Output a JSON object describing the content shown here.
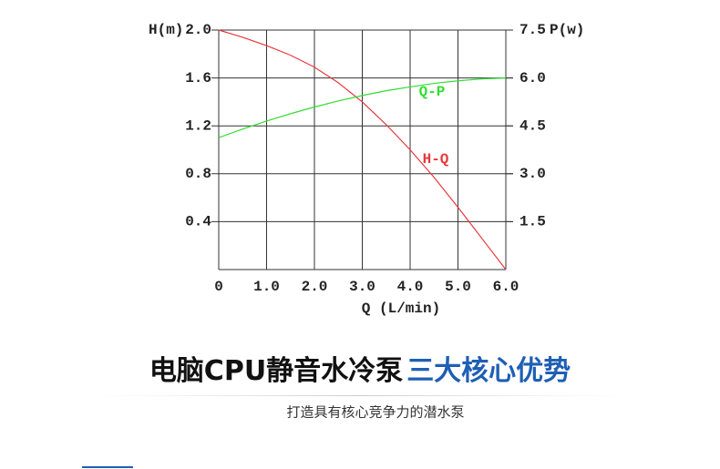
{
  "chart_data": {
    "type": "line",
    "y_label": "H(m)",
    "y2_label": "P(w)",
    "x_label": "Q (L/min)",
    "x": [
      0,
      0.5,
      1,
      1.5,
      2,
      2.5,
      3,
      3.5,
      4,
      4.5,
      5,
      5.5,
      6
    ],
    "series": [
      {
        "name": "H-Q",
        "color": "#e8383d",
        "values": [
          2.0,
          1.94,
          1.87,
          1.79,
          1.69,
          1.56,
          1.4,
          1.21,
          1.0,
          0.77,
          0.52,
          0.26,
          0
        ]
      },
      {
        "name": "Q-P",
        "color": "#33dd33",
        "axis": "y2",
        "values": [
          4.13,
          4.4,
          4.65,
          4.88,
          5.09,
          5.28,
          5.45,
          5.6,
          5.72,
          5.83,
          5.91,
          5.97,
          6.0
        ]
      }
    ],
    "xlim": [
      0,
      6
    ],
    "xticks": [
      0,
      {
        "value": 1,
        "label": "1.0"
      },
      {
        "value": 2,
        "label": "2.0"
      },
      {
        "value": 3,
        "label": "3.0"
      },
      {
        "value": 4,
        "label": "4.0"
      },
      {
        "value": 5,
        "label": "5.0"
      },
      {
        "value": 6,
        "label": "6.0"
      }
    ],
    "ylim": [
      0,
      2
    ],
    "yticks": [
      0.4,
      0.8,
      1.2,
      1.6,
      {
        "value": 2,
        "label": "2.0"
      }
    ],
    "y2lim": [
      0,
      7.5
    ],
    "y2ticks": [
      1.5,
      {
        "value": 3,
        "label": "3.0"
      },
      4.5,
      {
        "value": 6,
        "label": "6.0"
      },
      7.5
    ],
    "grid": true
  },
  "headline": {
    "part1": "电脑CPU静音水冷泵",
    "part2": "三大核心优势"
  },
  "subtitle": "打造具有核心竞争力的潜水泵"
}
